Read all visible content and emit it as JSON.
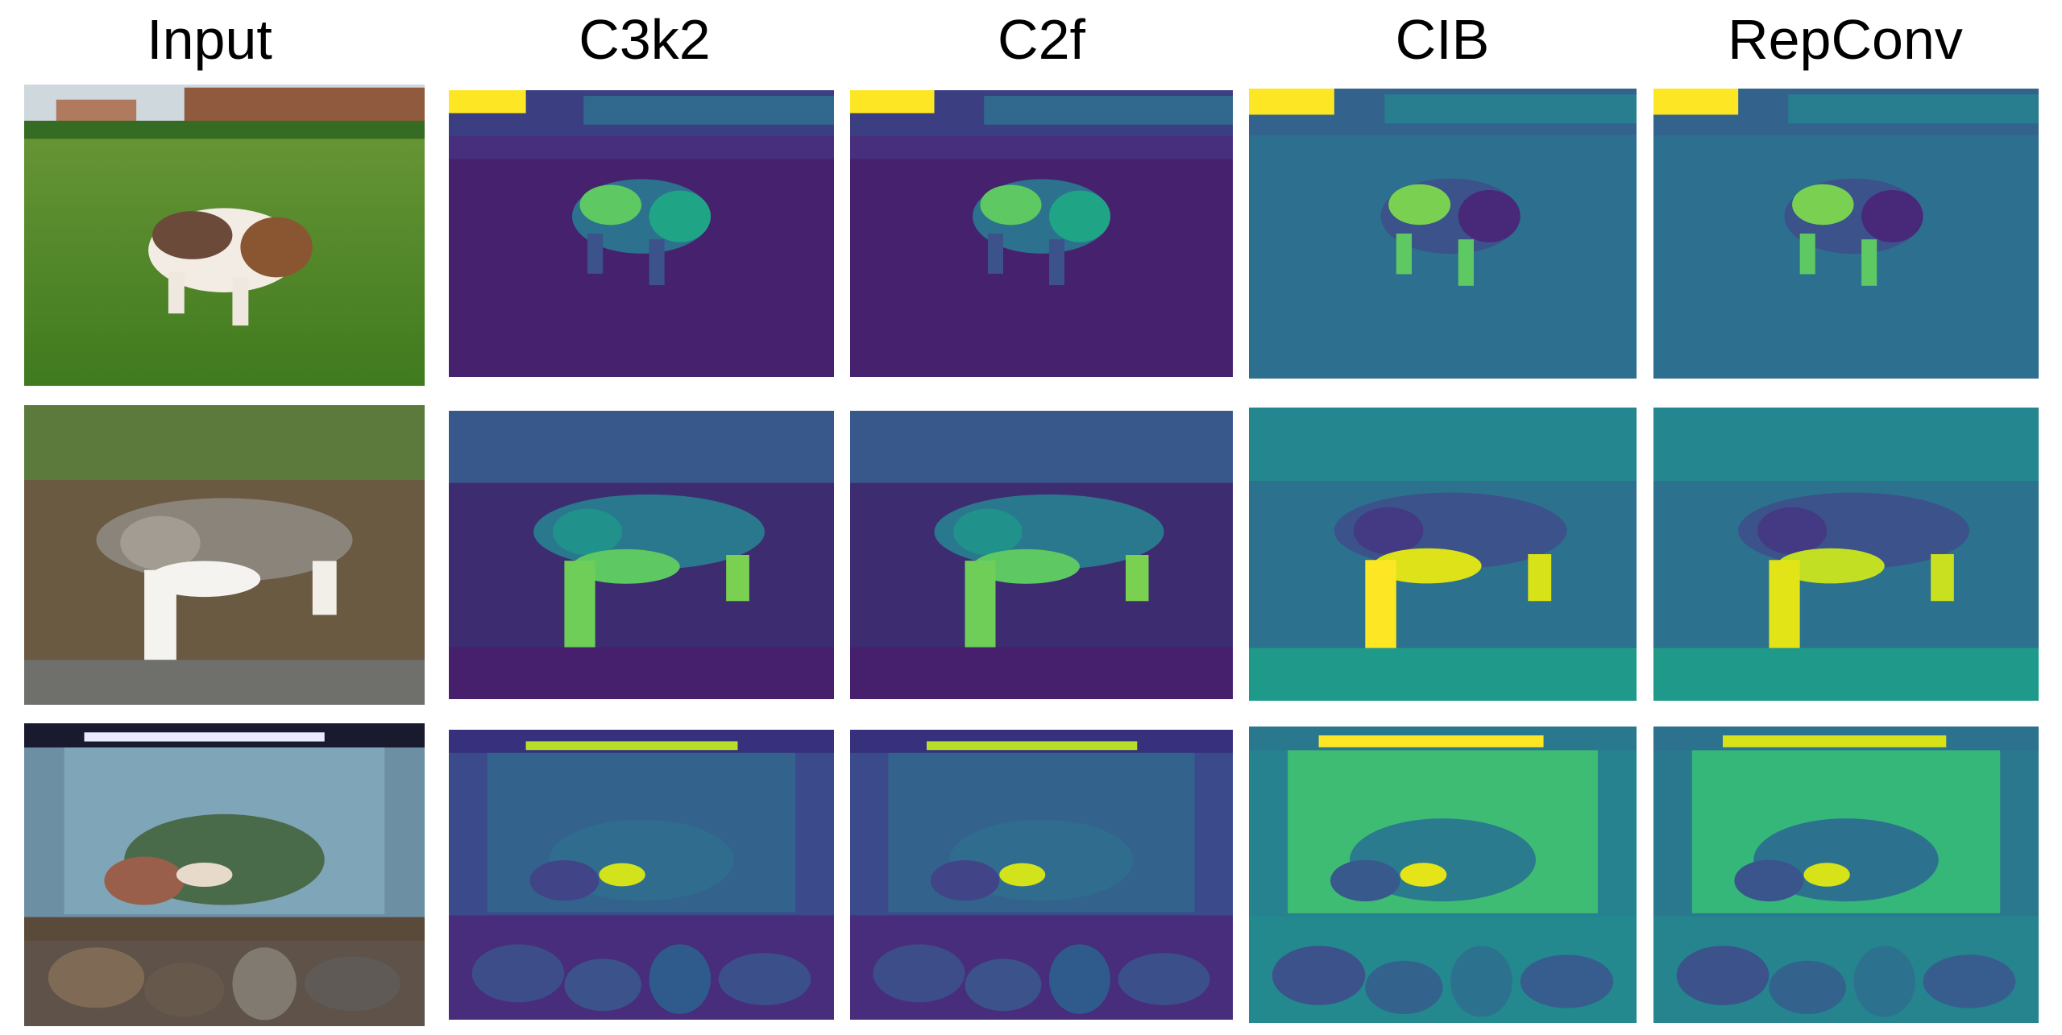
{
  "columns": [
    {
      "label": "Input",
      "kind": "photo"
    },
    {
      "label": "C3k2",
      "kind": "feature"
    },
    {
      "label": "C2f",
      "kind": "feature"
    },
    {
      "label": "CIB",
      "kind": "feature"
    },
    {
      "label": "RepConv",
      "kind": "feature"
    }
  ],
  "rows": [
    {
      "subject": "puppy",
      "scene": "grass"
    },
    {
      "subject": "cat",
      "scene": "leaves"
    },
    {
      "subject": "aquarium",
      "scene": "tank"
    }
  ],
  "colormap": [
    "#440154",
    "#3b528b",
    "#21918c",
    "#5ec962",
    "#fde725"
  ]
}
